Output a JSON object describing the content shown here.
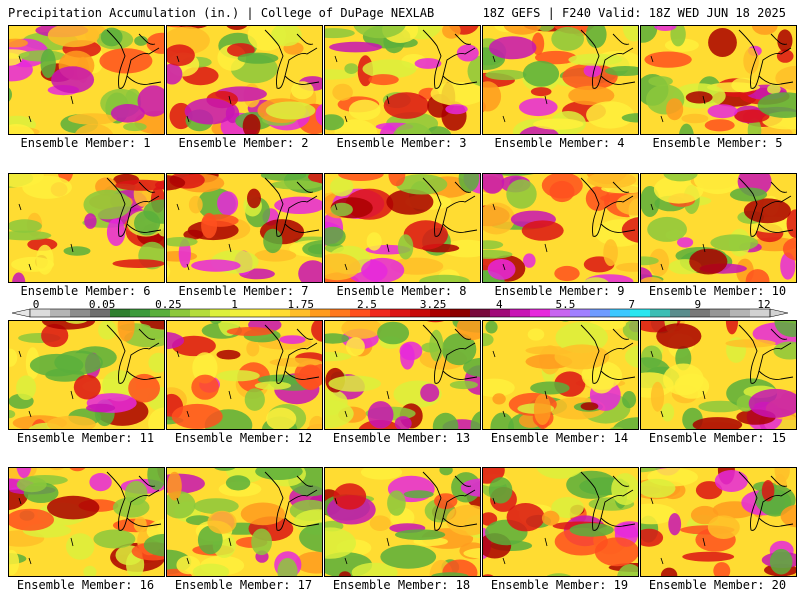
{
  "header": {
    "left": "Precipitation Accumulation (in.) | College of DuPage NEXLAB",
    "right": "18Z GEFS | F240 Valid: 18Z WED JUN 18 2025"
  },
  "colorbar": {
    "labels": [
      "0",
      "0.05",
      "0.25",
      "1",
      "1.75",
      "2.5",
      "3.25",
      "4",
      "5.5",
      "7",
      "9",
      "12"
    ],
    "colors": [
      "#dcdcdc",
      "#b4b4b4",
      "#8c8c8c",
      "#6e6e6e",
      "#2f7f2f",
      "#3c9a3c",
      "#5aaf3c",
      "#8cc83c",
      "#b4dc3c",
      "#dcf03c",
      "#f0f03c",
      "#fff03c",
      "#ffdc32",
      "#ffbe28",
      "#ff9b1e",
      "#ff781e",
      "#ff501e",
      "#f0281e",
      "#dc1414",
      "#c80a0a",
      "#aa0000",
      "#8c0000",
      "#780a3c",
      "#a00a78",
      "#c814b4",
      "#e628dc",
      "#c864f0",
      "#a080ff",
      "#6e9bff",
      "#3cc8ff",
      "#28e6f0",
      "#3cbeb4",
      "#5a8c8c",
      "#787878",
      "#969696",
      "#b4b4b4",
      "#d2d2d2"
    ]
  },
  "members": [
    {
      "label": "Ensemble Member: 1"
    },
    {
      "label": "Ensemble Member: 2"
    },
    {
      "label": "Ensemble Member: 3"
    },
    {
      "label": "Ensemble Member: 4"
    },
    {
      "label": "Ensemble Member: 5"
    },
    {
      "label": "Ensemble Member: 6"
    },
    {
      "label": "Ensemble Member: 7"
    },
    {
      "label": "Ensemble Member: 8"
    },
    {
      "label": "Ensemble Member: 9"
    },
    {
      "label": "Ensemble Member: 10"
    },
    {
      "label": "Ensemble Member: 11"
    },
    {
      "label": "Ensemble Member: 12"
    },
    {
      "label": "Ensemble Member: 13"
    },
    {
      "label": "Ensemble Member: 14"
    },
    {
      "label": "Ensemble Member: 15"
    },
    {
      "label": "Ensemble Member: 16"
    },
    {
      "label": "Ensemble Member: 17"
    },
    {
      "label": "Ensemble Member: 18"
    },
    {
      "label": "Ensemble Member: 19"
    },
    {
      "label": "Ensemble Member: 20"
    }
  ]
}
